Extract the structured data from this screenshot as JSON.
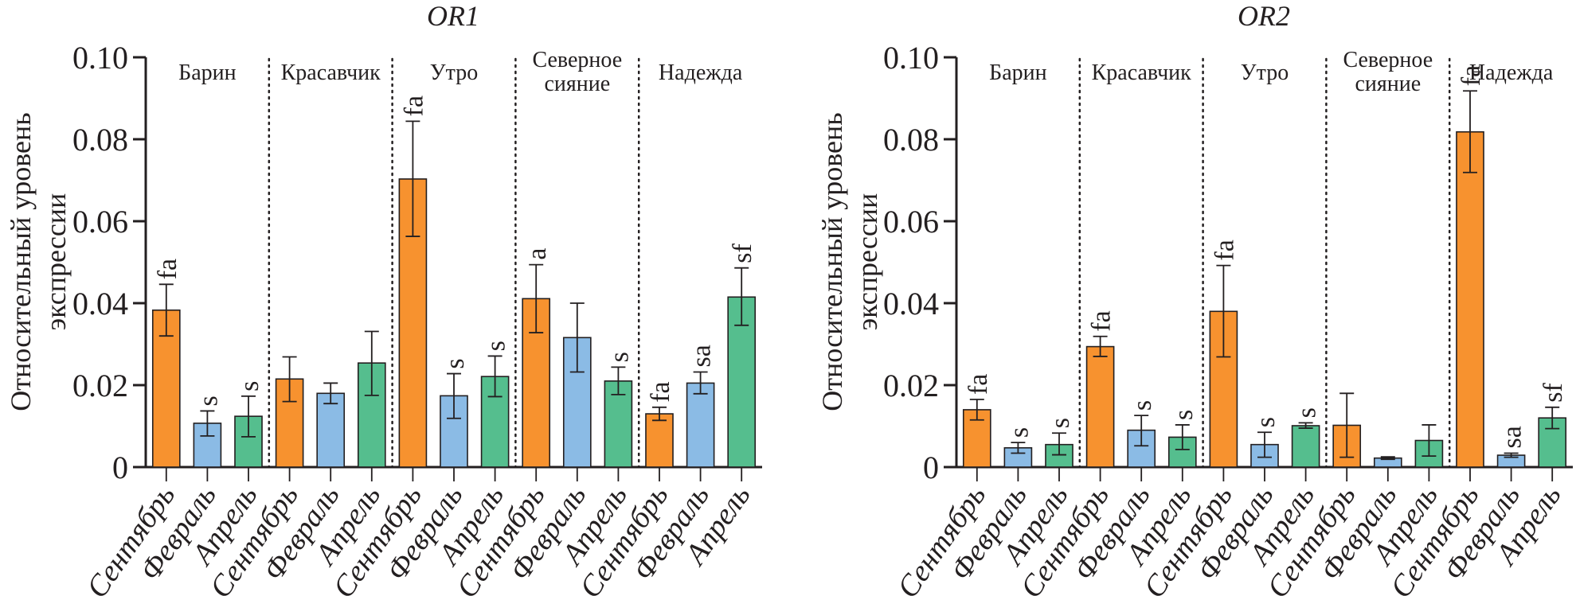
{
  "chart_data": [
    {
      "type": "bar",
      "title": "OR1",
      "ylabel": "Относительный уровень экспрессии",
      "xlabel": "",
      "ylim": [
        0,
        0.1
      ],
      "yticks": [
        "0",
        "0.02",
        "0.04",
        "0.06",
        "0.08",
        "0.10"
      ],
      "grid": false,
      "groups": [
        "Барин",
        "Красавчик",
        "Утро",
        "Северное сияние",
        "Надежда"
      ],
      "categories": [
        "Сентябрь",
        "Февраль",
        "Апрель"
      ],
      "colors": {
        "Сентябрь": "#F7922F",
        "Февраль": "#8BBBE5",
        "Апрель": "#55BE8E"
      },
      "bars": [
        {
          "group": "Барин",
          "month": "Сентябрь",
          "value": 0.0383,
          "err_low": 0.032,
          "err_high": 0.0446,
          "label": "fa"
        },
        {
          "group": "Барин",
          "month": "Февраль",
          "value": 0.0107,
          "err_low": 0.0076,
          "err_high": 0.0137,
          "label": "s"
        },
        {
          "group": "Барин",
          "month": "Апрель",
          "value": 0.0124,
          "err_low": 0.0074,
          "err_high": 0.0173,
          "label": "s"
        },
        {
          "group": "Красавчик",
          "month": "Сентябрь",
          "value": 0.0215,
          "err_low": 0.016,
          "err_high": 0.0269,
          "label": ""
        },
        {
          "group": "Красавчик",
          "month": "Февраль",
          "value": 0.018,
          "err_low": 0.0155,
          "err_high": 0.0205,
          "label": ""
        },
        {
          "group": "Красавчик",
          "month": "Апрель",
          "value": 0.0254,
          "err_low": 0.0175,
          "err_high": 0.0331,
          "label": ""
        },
        {
          "group": "Утро",
          "month": "Сентябрь",
          "value": 0.0703,
          "err_low": 0.0563,
          "err_high": 0.0844,
          "label": "fa"
        },
        {
          "group": "Утро",
          "month": "Февраль",
          "value": 0.0174,
          "err_low": 0.0119,
          "err_high": 0.0228,
          "label": "s"
        },
        {
          "group": "Утро",
          "month": "Апрель",
          "value": 0.0221,
          "err_low": 0.0172,
          "err_high": 0.0271,
          "label": "s"
        },
        {
          "group": "Северное сияние",
          "month": "Сентябрь",
          "value": 0.0411,
          "err_low": 0.0328,
          "err_high": 0.0494,
          "label": "a"
        },
        {
          "group": "Северное сияние",
          "month": "Февраль",
          "value": 0.0316,
          "err_low": 0.0232,
          "err_high": 0.04,
          "label": ""
        },
        {
          "group": "Северное сияние",
          "month": "Апрель",
          "value": 0.021,
          "err_low": 0.0177,
          "err_high": 0.0244,
          "label": "s"
        },
        {
          "group": "Надежда",
          "month": "Сентябрь",
          "value": 0.013,
          "err_low": 0.0114,
          "err_high": 0.0146,
          "label": "fa"
        },
        {
          "group": "Надежда",
          "month": "Февраль",
          "value": 0.0205,
          "err_low": 0.0179,
          "err_high": 0.0232,
          "label": "sa"
        },
        {
          "group": "Надежда",
          "month": "Апрель",
          "value": 0.0415,
          "err_low": 0.0346,
          "err_high": 0.0486,
          "label": "sf"
        }
      ]
    },
    {
      "type": "bar",
      "title": "OR2",
      "ylabel": "Относительный уровень экспрессии",
      "xlabel": "",
      "ylim": [
        0,
        0.1
      ],
      "yticks": [
        "0",
        "0.02",
        "0.04",
        "0.06",
        "0.08",
        "0.10"
      ],
      "grid": false,
      "groups": [
        "Барин",
        "Красавчик",
        "Утро",
        "Северное сияние",
        "Надежда"
      ],
      "categories": [
        "Сентябрь",
        "Февраль",
        "Апрель"
      ],
      "colors": {
        "Сентябрь": "#F7922F",
        "Февраль": "#8BBBE5",
        "Апрель": "#55BE8E"
      },
      "bars": [
        {
          "group": "Барин",
          "month": "Сентябрь",
          "value": 0.014,
          "err_low": 0.0115,
          "err_high": 0.0165,
          "label": "fa"
        },
        {
          "group": "Барин",
          "month": "Февраль",
          "value": 0.0047,
          "err_low": 0.0034,
          "err_high": 0.006,
          "label": "s"
        },
        {
          "group": "Барин",
          "month": "Апрель",
          "value": 0.0055,
          "err_low": 0.003,
          "err_high": 0.0083,
          "label": "s"
        },
        {
          "group": "Красавчик",
          "month": "Сентябрь",
          "value": 0.0294,
          "err_low": 0.027,
          "err_high": 0.0319,
          "label": "fa"
        },
        {
          "group": "Красавчик",
          "month": "Февраль",
          "value": 0.009,
          "err_low": 0.0052,
          "err_high": 0.0126,
          "label": "s"
        },
        {
          "group": "Красавчик",
          "month": "Апрель",
          "value": 0.0073,
          "err_low": 0.0043,
          "err_high": 0.0103,
          "label": "s"
        },
        {
          "group": "Утро",
          "month": "Сентябрь",
          "value": 0.038,
          "err_low": 0.0269,
          "err_high": 0.0492,
          "label": "fa"
        },
        {
          "group": "Утро",
          "month": "Февраль",
          "value": 0.0055,
          "err_low": 0.0024,
          "err_high": 0.0085,
          "label": "s"
        },
        {
          "group": "Утро",
          "month": "Апрель",
          "value": 0.0101,
          "err_low": 0.0095,
          "err_high": 0.0108,
          "label": "s"
        },
        {
          "group": "Северное сияние",
          "month": "Сентябрь",
          "value": 0.0102,
          "err_low": 0.0024,
          "err_high": 0.018,
          "label": ""
        },
        {
          "group": "Северное сияние",
          "month": "Февраль",
          "value": 0.0022,
          "err_low": 0.0019,
          "err_high": 0.0025,
          "label": ""
        },
        {
          "group": "Северное сияние",
          "month": "Апрель",
          "value": 0.0065,
          "err_low": 0.0027,
          "err_high": 0.0103,
          "label": ""
        },
        {
          "group": "Надежда",
          "month": "Сентябрь",
          "value": 0.0818,
          "err_low": 0.0719,
          "err_high": 0.0918,
          "label": "fa"
        },
        {
          "group": "Надежда",
          "month": "Февраль",
          "value": 0.0029,
          "err_low": 0.0024,
          "err_high": 0.0034,
          "label": "sa"
        },
        {
          "group": "Надежда",
          "month": "Апрель",
          "value": 0.012,
          "err_low": 0.0094,
          "err_high": 0.0146,
          "label": "sf"
        }
      ]
    }
  ]
}
